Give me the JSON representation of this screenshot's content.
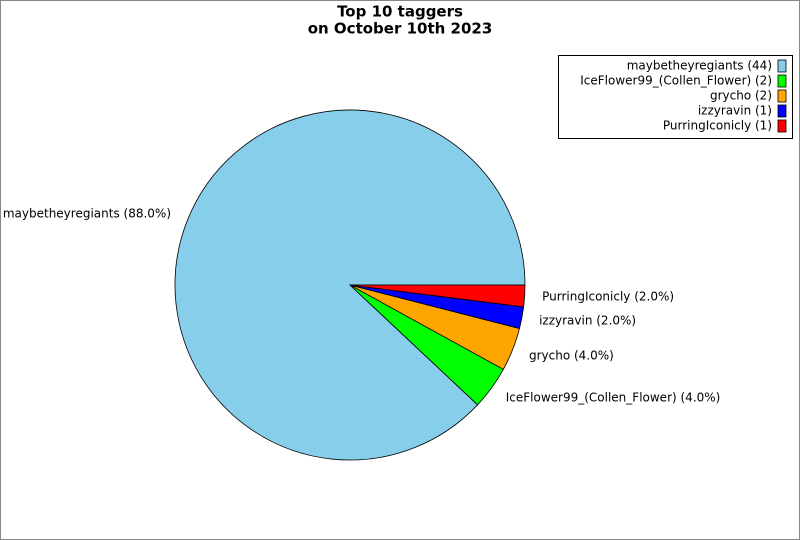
{
  "chart_data": {
    "type": "pie",
    "title": [
      "Top 10 taggers",
      "on October 10th 2023"
    ],
    "categories": [
      "maybetheyregiants",
      "IceFlower99_(Collen_Flower)",
      "grycho",
      "izzyravin",
      "PurringIconicly"
    ],
    "values": [
      44,
      2,
      2,
      1,
      1
    ],
    "colors": [
      "#87ceeb",
      "#00ff00",
      "#ffa500",
      "#0000ff",
      "#ff0000"
    ],
    "slice_labels": [
      "maybetheyregiants (88.0%)",
      "IceFlower99_(Collen_Flower) (4.0%)",
      "grycho (4.0%)",
      "izzyravin (2.0%)",
      "PurringIconicly (2.0%)"
    ],
    "legend_labels": [
      "maybetheyregiants (44)",
      "IceFlower99_(Collen_Flower) (2)",
      "grycho (2)",
      "izzyravin (1)",
      "PurringIconicly (1)"
    ],
    "legend": "upper right"
  }
}
